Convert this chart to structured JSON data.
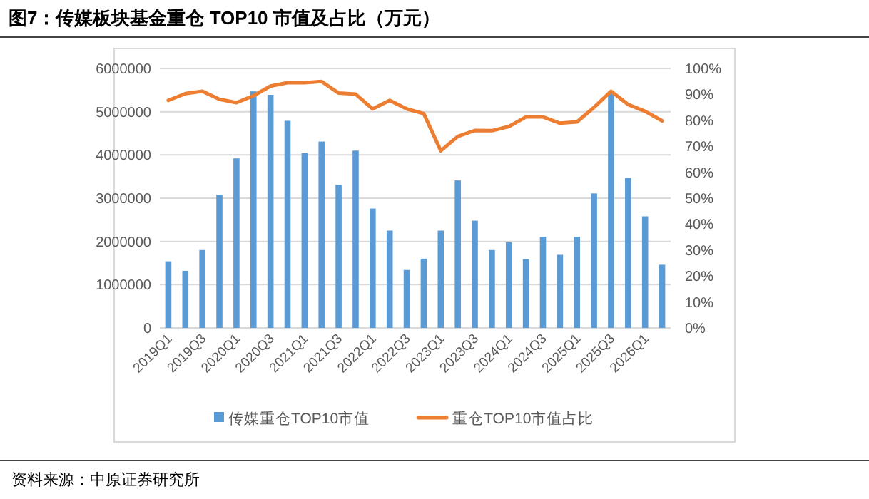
{
  "chart_data": {
    "type": "bar",
    "title": "图7：传媒板块基金重仓 TOP10 市值及占比（万元）",
    "categories": [
      "2019Q1",
      null,
      "2019Q3",
      null,
      "2020Q1",
      null,
      "2020Q3",
      null,
      "2021Q1",
      null,
      "2021Q3",
      null,
      "2022Q1",
      null,
      "2022Q3",
      null,
      "2023Q1",
      null,
      "2023Q3",
      null,
      "2024Q1",
      null,
      "2024Q3",
      null,
      "2025Q1",
      null,
      "2025Q3",
      null,
      "2026Q1",
      null
    ],
    "series": [
      {
        "name": "传媒重仓TOP10市值",
        "color": "#5b9bd5",
        "values": [
          1540000,
          1320000,
          1800000,
          3080000,
          3920000,
          5470000,
          5390000,
          4790000,
          4040000,
          4310000,
          3310000,
          4100000,
          2760000,
          2250000,
          1340000,
          1600000,
          2250000,
          3410000,
          2480000,
          1800000,
          1980000,
          1590000,
          2110000,
          1690000,
          2110000,
          3110000,
          5470000,
          3470000,
          2580000,
          1460000
        ]
      },
      {
        "name": "重仓TOP10市值占比",
        "type": "line",
        "axis": "y2",
        "color": "#ed7d31",
        "values": [
          87.7,
          90.3,
          91.2,
          88.1,
          86.8,
          89.5,
          93.2,
          94.5,
          94.5,
          95.0,
          90.5,
          90.1,
          84.4,
          87.7,
          84.4,
          82.6,
          68.3,
          73.8,
          76.1,
          76.0,
          77.6,
          81.3,
          81.3,
          78.9,
          79.4,
          85.0,
          91.2,
          86.1,
          83.5,
          79.8
        ]
      }
    ],
    "ylim": [
      0,
      6000000
    ],
    "yticks": [
      0,
      1000000,
      2000000,
      3000000,
      4000000,
      5000000,
      6000000
    ],
    "y2lim": [
      0,
      100
    ],
    "y2ticks": [
      {
        "value": 0,
        "label": "0%"
      },
      {
        "value": 10,
        "label": "10%"
      },
      {
        "value": 20,
        "label": "20%"
      },
      {
        "value": 30,
        "label": "30%"
      },
      {
        "value": 40,
        "label": "40%"
      },
      {
        "value": 50,
        "label": "50%"
      },
      {
        "value": 60,
        "label": "60%"
      },
      {
        "value": 70,
        "label": "70%"
      },
      {
        "value": 80,
        "label": "80%"
      },
      {
        "value": 90,
        "label": "90%"
      },
      {
        "value": 100,
        "label": "100%"
      }
    ],
    "grid": "y",
    "legend": "bottom",
    "marker": "none",
    "line_style": "solid",
    "annotations": [
      "资料来源：中原证券研究所"
    ]
  }
}
